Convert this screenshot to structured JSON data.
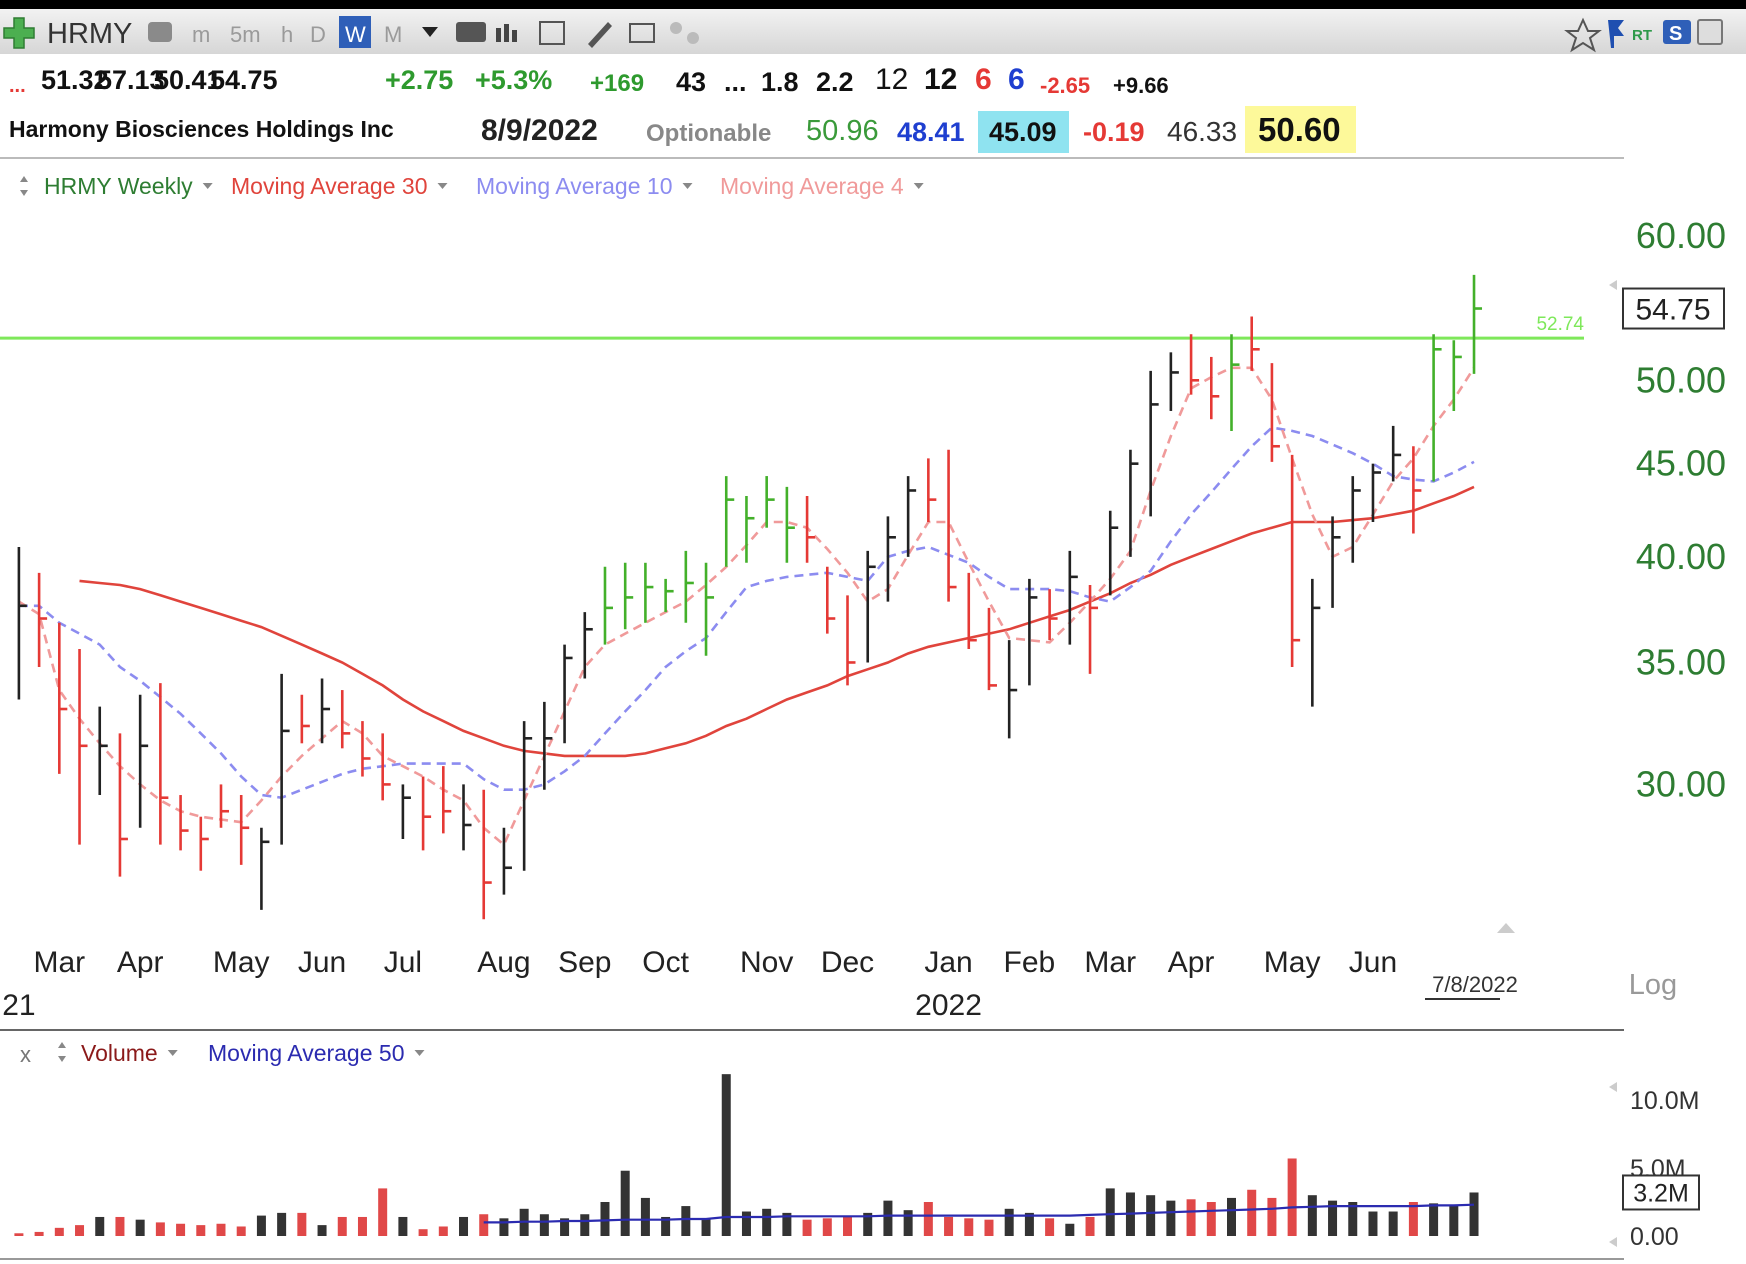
{
  "toolbar": {
    "symbol": "HRMY",
    "intervals": [
      "m",
      "5m",
      "h",
      "D",
      "W",
      "M"
    ],
    "rt": "RT",
    "s": "S"
  },
  "quote": {
    "row1": [
      "...",
      "51.32",
      "57.13",
      "50.41",
      "54.75",
      "+2.75",
      "+5.3%",
      "+169",
      "43",
      "...",
      "1.8",
      "2.2",
      "12",
      "12",
      "6",
      "6",
      "-2.65",
      "+9.66"
    ],
    "name": "Harmony Biosciences Holdings Inc",
    "date": "8/9/2022",
    "optionable": "Optionable",
    "row2": [
      "50.96",
      "48.41",
      "45.09",
      "-0.19",
      "46.33",
      "50.60"
    ]
  },
  "chart_data": [
    {
      "type": "ohlc",
      "log_scale": true,
      "scale_label": "Log",
      "date_marker": "7/8/2022",
      "ylim": [
        24.8,
        62.8
      ],
      "yticks": [
        {
          "value": 30,
          "label": "30.00"
        },
        {
          "value": 35,
          "label": "35.00"
        },
        {
          "value": 40,
          "label": "40.00"
        },
        {
          "value": 45,
          "label": "45.00"
        },
        {
          "value": 50,
          "label": "50.00"
        },
        {
          "value": 60,
          "label": "60.00"
        }
      ],
      "categories": [
        null,
        null,
        "Mar",
        null,
        null,
        null,
        "Apr",
        null,
        null,
        null,
        null,
        "May",
        null,
        null,
        null,
        "Jun",
        null,
        null,
        null,
        "Jul",
        null,
        null,
        null,
        null,
        "Aug",
        null,
        null,
        null,
        "Sep",
        null,
        null,
        null,
        "Oct",
        null,
        null,
        null,
        null,
        "Nov",
        null,
        null,
        null,
        "Dec",
        null,
        null,
        null,
        null,
        "Jan",
        null,
        null,
        null,
        "Feb",
        null,
        null,
        null,
        "Mar",
        null,
        null,
        null,
        "Apr",
        null,
        null,
        null,
        null,
        "May",
        null,
        null,
        null,
        "Jun",
        null,
        null,
        null,
        null,
        null
      ],
      "year_labels": [
        "21",
        null,
        null,
        null,
        null,
        null,
        null,
        null,
        null,
        null,
        null,
        null,
        null,
        null,
        null,
        null,
        null,
        null,
        null,
        null,
        null,
        null,
        null,
        null,
        null,
        null,
        null,
        null,
        null,
        null,
        null,
        null,
        null,
        null,
        null,
        null,
        null,
        null,
        null,
        null,
        null,
        null,
        null,
        null,
        null,
        null,
        "2022",
        null,
        null,
        null,
        null,
        null,
        null,
        null,
        null,
        null,
        null,
        null,
        null,
        null,
        null,
        null,
        null,
        null,
        null,
        null,
        null,
        null,
        null,
        null,
        null,
        null,
        null
      ],
      "hline": {
        "value": 52.74,
        "color": "#7ee85a"
      },
      "series": [
        {
          "name": "HRMY Weekly",
          "color": "#2e7d32",
          "high": [
            40.5,
            39.2,
            36.8,
            35.6,
            33.1,
            32.0,
            33.6,
            34.1,
            29.6,
            28.8,
            30.0,
            29.6,
            28.4,
            34.5,
            33.6,
            34.3,
            33.8,
            32.5,
            32.0,
            30.0,
            30.3,
            30.7,
            30.0,
            29.8,
            28.4,
            32.5,
            33.3,
            35.8,
            37.3,
            39.5,
            39.7,
            39.7,
            38.9,
            40.3,
            39.7,
            44.3,
            43.2,
            44.3,
            43.7,
            43.2,
            39.5,
            38.1,
            40.3,
            42.1,
            44.3,
            45.3,
            45.8,
            39.2,
            37.5,
            36.0,
            38.9,
            38.4,
            40.3,
            38.6,
            42.4,
            45.8,
            50.6,
            51.8,
            53.0,
            51.5,
            53.0,
            54.2,
            51.1,
            45.5,
            38.9,
            42.1,
            44.3,
            45.0,
            47.2,
            46.0,
            53.0,
            52.6,
            57.13
          ],
          "low": [
            33.4,
            34.8,
            30.4,
            27.8,
            29.6,
            26.7,
            28.4,
            27.8,
            27.6,
            26.9,
            28.4,
            27.1,
            25.6,
            27.8,
            31.6,
            31.6,
            31.4,
            30.3,
            29.4,
            28.0,
            27.6,
            28.2,
            27.6,
            25.3,
            26.1,
            26.9,
            29.8,
            31.6,
            34.3,
            35.8,
            36.5,
            36.8,
            37.3,
            36.8,
            35.3,
            39.5,
            39.7,
            41.5,
            39.7,
            39.7,
            36.3,
            34.0,
            35.0,
            37.8,
            40.0,
            41.8,
            37.8,
            35.6,
            33.8,
            31.8,
            34.0,
            36.0,
            35.8,
            34.5,
            38.1,
            40.0,
            42.1,
            48.1,
            49.1,
            47.6,
            46.9,
            50.6,
            45.1,
            34.8,
            33.1,
            37.5,
            39.7,
            41.8,
            44.0,
            41.2,
            44.0,
            48.1,
            50.41
          ],
          "close": [
            37.6,
            37.0,
            33.0,
            31.5,
            31.5,
            28.0,
            31.5,
            29.5,
            28.3,
            28.0,
            29.0,
            28.4,
            27.9,
            32.1,
            32.3,
            33.0,
            32.0,
            31.0,
            30.0,
            29.5,
            28.8,
            29.0,
            28.5,
            26.5,
            27.0,
            31.8,
            31.8,
            35.2,
            36.5,
            37.5,
            38.0,
            38.5,
            38.3,
            38.7,
            38.0,
            43.0,
            42.0,
            43.0,
            41.5,
            41.0,
            37.0,
            35.0,
            39.5,
            41.0,
            43.5,
            43.0,
            38.5,
            36.0,
            34.0,
            33.8,
            38.0,
            37.0,
            39.0,
            37.5,
            41.5,
            45.0,
            48.5,
            50.5,
            50.0,
            49.0,
            51.0,
            52.0,
            46.0,
            36.0,
            37.5,
            41.0,
            43.5,
            44.5,
            45.5,
            43.5,
            52.0,
            51.5,
            54.75
          ],
          "colors": [
            "#222222",
            "#e53935",
            "#e53935",
            "#e53935",
            "#222222",
            "#e53935",
            "#222222",
            "#e53935",
            "#e53935",
            "#e53935",
            "#e53935",
            "#e53935",
            "#222222",
            "#222222",
            "#e53935",
            "#222222",
            "#e53935",
            "#e53935",
            "#e53935",
            "#222222",
            "#e53935",
            "#e53935",
            "#222222",
            "#e53935",
            "#222222",
            "#222222",
            "#222222",
            "#222222",
            "#222222",
            "#43b02a",
            "#43b02a",
            "#43b02a",
            "#43b02a",
            "#43b02a",
            "#43b02a",
            "#43b02a",
            "#43b02a",
            "#43b02a",
            "#43b02a",
            "#e53935",
            "#e53935",
            "#e53935",
            "#222222",
            "#222222",
            "#222222",
            "#e53935",
            "#e53935",
            "#e53935",
            "#e53935",
            "#222222",
            "#222222",
            "#e53935",
            "#222222",
            "#e53935",
            "#222222",
            "#222222",
            "#222222",
            "#222222",
            "#e53935",
            "#e53935",
            "#43b02a",
            "#e53935",
            "#e53935",
            "#e53935",
            "#222222",
            "#222222",
            "#222222",
            "#222222",
            "#222222",
            "#e53935",
            "#43b02a",
            "#43b02a",
            "#43b02a"
          ]
        },
        {
          "name": "Moving Average 30",
          "color": "#e0443c",
          "dashed": false,
          "values": [
            null,
            null,
            null,
            38.8,
            38.7,
            38.6,
            38.4,
            38.1,
            37.8,
            37.5,
            37.2,
            36.9,
            36.6,
            36.2,
            35.8,
            35.4,
            35.0,
            34.5,
            34.0,
            33.4,
            32.9,
            32.5,
            32.1,
            31.8,
            31.5,
            31.3,
            31.2,
            31.1,
            31.1,
            31.1,
            31.1,
            31.2,
            31.4,
            31.6,
            31.9,
            32.3,
            32.6,
            33.0,
            33.4,
            33.7,
            34.0,
            34.4,
            34.7,
            35.0,
            35.4,
            35.7,
            35.9,
            36.1,
            36.3,
            36.5,
            36.8,
            37.1,
            37.4,
            37.8,
            38.2,
            38.7,
            39.1,
            39.6,
            40.0,
            40.4,
            40.8,
            41.2,
            41.5,
            41.8,
            41.8,
            41.8,
            41.9,
            42.0,
            42.2,
            42.4,
            42.8,
            43.2,
            43.7
          ]
        },
        {
          "name": "Moving Average 10",
          "color": "#8c8cf0",
          "dashed": true,
          "values": [
            37.6,
            37.6,
            36.8,
            36.3,
            35.8,
            34.8,
            34.2,
            33.5,
            32.8,
            32.0,
            31.2,
            30.3,
            29.6,
            29.5,
            29.8,
            30.1,
            30.4,
            30.6,
            30.7,
            30.8,
            30.8,
            30.8,
            30.8,
            30.2,
            29.8,
            29.8,
            30.0,
            30.5,
            31.1,
            32.0,
            32.9,
            33.8,
            34.8,
            35.5,
            36.1,
            37.3,
            38.5,
            38.8,
            39.0,
            39.1,
            39.2,
            39.0,
            38.8,
            40.0,
            40.3,
            40.5,
            40.1,
            39.7,
            39.0,
            38.4,
            38.4,
            38.4,
            38.3,
            38.0,
            37.8,
            38.5,
            39.3,
            40.8,
            42.2,
            43.4,
            44.7,
            46.0,
            47.1,
            46.9,
            46.6,
            46.1,
            45.6,
            45.0,
            44.3,
            44.1,
            44.0,
            44.5,
            45.1
          ]
        },
        {
          "name": "Moving Average 4",
          "color": "#f09a9a",
          "dashed": true,
          "values": [
            37.8,
            37.2,
            33.8,
            32.6,
            31.6,
            30.7,
            30.0,
            29.4,
            29.0,
            28.8,
            28.7,
            28.6,
            29.4,
            30.3,
            31.1,
            31.8,
            32.5,
            32.0,
            31.1,
            30.7,
            30.3,
            29.8,
            29.4,
            28.4,
            27.8,
            29.4,
            31.1,
            32.9,
            34.8,
            35.8,
            36.3,
            36.8,
            37.3,
            37.8,
            38.6,
            39.5,
            40.6,
            41.8,
            41.8,
            41.5,
            40.4,
            39.2,
            37.8,
            38.4,
            40.1,
            41.8,
            41.8,
            39.7,
            37.8,
            36.1,
            36.0,
            35.9,
            36.8,
            37.8,
            38.9,
            40.3,
            43.5,
            46.6,
            49.5,
            50.2,
            50.8,
            50.8,
            48.8,
            45.3,
            42.2,
            40.0,
            40.5,
            42.2,
            44.0,
            45.3,
            47.2,
            48.8,
            50.8
          ]
        }
      ]
    },
    {
      "type": "bar",
      "close_label": "x",
      "ylim": [
        0,
        12500000
      ],
      "yticks": [
        {
          "value": 0,
          "label": "0.00"
        },
        {
          "value": 5000000,
          "label": "5.0M"
        },
        {
          "value": 10000000,
          "label": "10.0M"
        }
      ],
      "current_value": {
        "value": 3200000,
        "label": "3.2M"
      },
      "series": [
        {
          "name": "Volume",
          "color": "#8b1a1a",
          "values": [
            200000,
            300000,
            600000,
            800000,
            1400000,
            1400000,
            1200000,
            1000000,
            900000,
            800000,
            900000,
            700000,
            1500000,
            1700000,
            1700000,
            800000,
            1400000,
            1400000,
            3500000,
            1400000,
            500000,
            700000,
            1400000,
            1600000,
            1300000,
            2000000,
            1600000,
            1300000,
            1600000,
            2500000,
            4800000,
            2800000,
            1400000,
            2200000,
            1300000,
            11900000,
            1800000,
            2000000,
            1700000,
            1200000,
            1300000,
            1400000,
            1700000,
            2600000,
            1900000,
            2500000,
            1400000,
            1300000,
            1200000,
            2000000,
            1700000,
            1300000,
            900000,
            1400000,
            3500000,
            3200000,
            3000000,
            2600000,
            2700000,
            2500000,
            2800000,
            3400000,
            2800000,
            5700000,
            3000000,
            2600000,
            2500000,
            1800000,
            1800000,
            2500000,
            2400000,
            2300000,
            3200000
          ],
          "colors": [
            "#e04848",
            "#e04848",
            "#e04848",
            "#e04848",
            "#333333",
            "#e04848",
            "#333333",
            "#e04848",
            "#e04848",
            "#e04848",
            "#e04848",
            "#e04848",
            "#333333",
            "#333333",
            "#e04848",
            "#333333",
            "#e04848",
            "#e04848",
            "#e04848",
            "#333333",
            "#e04848",
            "#e04848",
            "#333333",
            "#e04848",
            "#333333",
            "#333333",
            "#333333",
            "#333333",
            "#333333",
            "#333333",
            "#333333",
            "#333333",
            "#333333",
            "#333333",
            "#333333",
            "#333333",
            "#333333",
            "#333333",
            "#333333",
            "#e04848",
            "#e04848",
            "#e04848",
            "#333333",
            "#333333",
            "#333333",
            "#e04848",
            "#e04848",
            "#e04848",
            "#e04848",
            "#333333",
            "#333333",
            "#e04848",
            "#333333",
            "#e04848",
            "#333333",
            "#333333",
            "#333333",
            "#333333",
            "#e04848",
            "#e04848",
            "#333333",
            "#e04848",
            "#e04848",
            "#e04848",
            "#333333",
            "#333333",
            "#333333",
            "#333333",
            "#333333",
            "#e04848",
            "#333333",
            "#333333",
            "#333333"
          ]
        },
        {
          "name": "Moving Average 50",
          "color": "#2b2bb0",
          "values": [
            null,
            null,
            null,
            null,
            null,
            null,
            null,
            null,
            null,
            null,
            null,
            null,
            null,
            null,
            null,
            null,
            null,
            null,
            null,
            null,
            null,
            null,
            null,
            1000000,
            1000000,
            1050000,
            1050000,
            1100000,
            1100000,
            1150000,
            1200000,
            1200000,
            1200000,
            1250000,
            1250000,
            1400000,
            1400000,
            1400000,
            1450000,
            1450000,
            1450000,
            1450000,
            1450000,
            1500000,
            1500000,
            1500000,
            1500000,
            1500000,
            1500000,
            1500000,
            1500000,
            1500000,
            1500000,
            1550000,
            1600000,
            1650000,
            1700000,
            1750000,
            1800000,
            1850000,
            1900000,
            1950000,
            2000000,
            2100000,
            2150000,
            2200000,
            2200000,
            2200000,
            2200000,
            2200000,
            2250000,
            2250000,
            2300000
          ]
        }
      ]
    }
  ]
}
